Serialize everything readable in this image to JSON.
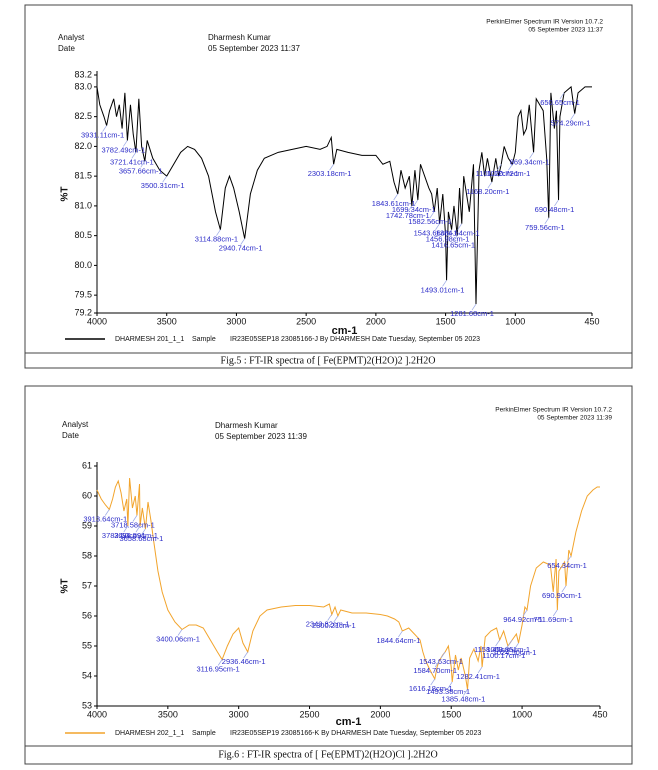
{
  "chart_data": [
    {
      "type": "line",
      "analyst_label": "Analyst",
      "date_label": "Date",
      "analyst": "Dharmesh Kumar",
      "date": "05 September 2023 11:37",
      "software": "PerkinElmer Spectrum IR Version 10.7.2",
      "software_date": "05 September 2023 11:37",
      "x_label": "cm-1",
      "y_label": "%T",
      "legend_sample": "Sample",
      "legend_info": "IR23E05SEP18 23085166-J  By DHARMESH  Date Tuesday, September 05 2023",
      "caption": "Fig.5 : FT-IR spectra of [ Fe(EPMT)2(H2O)2 ].2H2O",
      "xlim": [
        4000,
        450
      ],
      "ylim": [
        79.2,
        83.2
      ],
      "xticks": [
        4000,
        3500,
        3000,
        2500,
        2000,
        1500,
        1000,
        450
      ],
      "yticks": [
        79.2,
        79.5,
        {
          "value": 80,
          "label": "80.0"
        },
        80.5,
        {
          "value": 81,
          "label": "81.0"
        },
        81.5,
        {
          "value": 82,
          "label": "82.0"
        },
        82.5,
        {
          "value": 83,
          "label": "83.0"
        },
        83.2
      ],
      "x": [
        4000,
        3980,
        3950,
        3931,
        3910,
        3880,
        3860,
        3840,
        3820,
        3800,
        3782,
        3760,
        3740,
        3721,
        3700,
        3680,
        3657,
        3640,
        3600,
        3550,
        3500,
        3450,
        3400,
        3350,
        3300,
        3250,
        3200,
        3150,
        3115,
        3080,
        3050,
        3020,
        2980,
        2941,
        2900,
        2850,
        2800,
        2700,
        2600,
        2500,
        2400,
        2350,
        2320,
        2303,
        2280,
        2200,
        2100,
        2000,
        1950,
        1900,
        1870,
        1843,
        1820,
        1790,
        1760,
        1742,
        1720,
        1699,
        1680,
        1650,
        1620,
        1600,
        1582,
        1560,
        1543,
        1520,
        1500,
        1493,
        1480,
        1457,
        1440,
        1416,
        1400,
        1384,
        1370,
        1350,
        1330,
        1300,
        1282,
        1260,
        1240,
        1220,
        1200,
        1168,
        1140,
        1120,
        1101,
        1080,
        1050,
        1021,
        1000,
        980,
        960,
        940,
        920,
        900,
        869,
        850,
        800,
        775,
        760,
        745,
        720,
        705,
        690,
        680,
        650,
        600,
        574,
        550,
        500,
        450
      ],
      "series": [
        {
          "name": "DHARMESH 201_1_1",
          "color": "#000000",
          "values": [
            83.0,
            82.7,
            82.5,
            82.35,
            82.6,
            82.8,
            82.5,
            82.7,
            82.3,
            82.9,
            82.1,
            82.7,
            82.2,
            81.9,
            82.8,
            82.0,
            81.75,
            82.1,
            81.8,
            81.6,
            81.5,
            81.7,
            81.9,
            82.0,
            81.95,
            81.8,
            81.5,
            80.9,
            80.6,
            81.3,
            81.5,
            81.3,
            80.9,
            80.45,
            81.2,
            81.6,
            81.8,
            81.9,
            81.95,
            82.0,
            81.95,
            82.0,
            82.15,
            81.7,
            81.95,
            81.9,
            81.85,
            81.85,
            81.7,
            81.75,
            81.4,
            81.2,
            81.6,
            81.3,
            81.5,
            81.0,
            81.6,
            81.1,
            81.7,
            81.5,
            81.3,
            81.2,
            80.9,
            81.3,
            80.7,
            81.2,
            80.5,
            79.75,
            80.9,
            80.6,
            81.0,
            80.5,
            81.3,
            80.7,
            81.5,
            81.2,
            80.9,
            81.7,
            79.35,
            81.6,
            81.9,
            81.5,
            81.8,
            81.4,
            81.8,
            81.5,
            81.7,
            82.0,
            81.8,
            81.7,
            81.9,
            82.5,
            82.6,
            82.2,
            82.3,
            82.7,
            81.9,
            82.8,
            82.6,
            81.8,
            80.8,
            82.9,
            82.3,
            82.6,
            81.1,
            82.5,
            82.9,
            83.0,
            82.55,
            82.9,
            83.0,
            83.0
          ]
        }
      ],
      "peaks": [
        {
          "x": 3931.11,
          "y": 82.35,
          "label": "3931.11cm-1"
        },
        {
          "x": 3782.49,
          "y": 82.1,
          "label": "3782.49cm-1"
        },
        {
          "x": 3721.41,
          "y": 81.9,
          "label": "3721.41cm-1"
        },
        {
          "x": 3657.66,
          "y": 81.75,
          "label": "3657.66cm-1"
        },
        {
          "x": 3500.31,
          "y": 81.5,
          "label": "3500.31cm-1"
        },
        {
          "x": 3114.88,
          "y": 80.6,
          "label": "3114.88cm-1"
        },
        {
          "x": 2940.74,
          "y": 80.45,
          "label": "2940.74cm-1"
        },
        {
          "x": 2303.18,
          "y": 81.7,
          "label": "2303.18cm-1"
        },
        {
          "x": 1843.61,
          "y": 81.2,
          "label": "1843.61cm-1"
        },
        {
          "x": 1742.78,
          "y": 81.0,
          "label": "1742.78cm-1"
        },
        {
          "x": 1699.34,
          "y": 81.1,
          "label": "1699.34cm-1"
        },
        {
          "x": 1582.56,
          "y": 80.9,
          "label": "1582.56cm-1"
        },
        {
          "x": 1543.66,
          "y": 80.7,
          "label": "1543.66cm-1"
        },
        {
          "x": 1456.98,
          "y": 80.6,
          "label": "1456.98cm-1"
        },
        {
          "x": 1416.65,
          "y": 80.5,
          "label": "1416.65cm-1"
        },
        {
          "x": 1384.64,
          "y": 80.7,
          "label": "1384.64cm-1"
        },
        {
          "x": 1493.01,
          "y": 79.75,
          "label": "1493.01cm-1"
        },
        {
          "x": 1281.68,
          "y": 79.35,
          "label": "1281.68cm-1"
        },
        {
          "x": 1168.2,
          "y": 81.4,
          "label": "1168.20cm-1"
        },
        {
          "x": 1101.12,
          "y": 81.7,
          "label": "1101.12cm-1"
        },
        {
          "x": 1020.72,
          "y": 81.7,
          "label": "1020.72cm-1"
        },
        {
          "x": 869.34,
          "y": 81.9,
          "label": "869.34cm-1"
        },
        {
          "x": 759.56,
          "y": 80.8,
          "label": "759.56cm-1"
        },
        {
          "x": 690.48,
          "y": 81.1,
          "label": "690.48cm-1"
        },
        {
          "x": 650.65,
          "y": 82.9,
          "label": "650.65cm-1"
        },
        {
          "x": 574.29,
          "y": 82.55,
          "label": "574.29cm-1"
        }
      ]
    },
    {
      "type": "line",
      "analyst_label": "Analyst",
      "date_label": "Date",
      "analyst": "Dharmesh Kumar",
      "date": "05 September 2023 11:39",
      "software": "PerkinElmer Spectrum IR Version 10.7.2",
      "software_date": "05 September 2023 11:39",
      "x_label": "cm-1",
      "y_label": "%T",
      "legend_sample": "Sample",
      "legend_info": "IR23E05SEP19 23085166-K  By DHARMESH  Date Tuesday, September 05 2023",
      "caption": "Fig.6 : FT-IR spectra of [ Fe(EPMT)2(H2O)Cl ].2H2O",
      "xlim": [
        4000,
        450
      ],
      "ylim": [
        53,
        61
      ],
      "xticks": [
        4000,
        3500,
        3000,
        2500,
        2000,
        1500,
        1000,
        450
      ],
      "yticks": [
        53,
        54,
        55,
        56,
        57,
        58,
        59,
        60,
        61
      ],
      "x": [
        4000,
        3970,
        3940,
        3913,
        3890,
        3870,
        3850,
        3830,
        3810,
        3790,
        3782,
        3770,
        3750,
        3730,
        3718,
        3700,
        3696,
        3680,
        3658,
        3640,
        3620,
        3600,
        3570,
        3540,
        3500,
        3450,
        3400,
        3350,
        3300,
        3250,
        3200,
        3150,
        3117,
        3080,
        3040,
        3000,
        2970,
        2936,
        2900,
        2850,
        2800,
        2700,
        2600,
        2500,
        2400,
        2360,
        2343,
        2320,
        2300,
        2280,
        2200,
        2100,
        2000,
        1950,
        1900,
        1870,
        1845,
        1800,
        1760,
        1720,
        1700,
        1680,
        1650,
        1616,
        1600,
        1585,
        1560,
        1543,
        1520,
        1500,
        1493,
        1470,
        1450,
        1430,
        1400,
        1385,
        1370,
        1340,
        1310,
        1290,
        1282,
        1260,
        1220,
        1180,
        1158,
        1130,
        1100,
        1070,
        1040,
        1025,
        1000,
        980,
        965,
        940,
        900,
        850,
        800,
        780,
        760,
        751,
        740,
        700,
        690,
        670,
        654,
        620,
        580,
        540,
        500,
        470,
        450
      ],
      "series": [
        {
          "name": "DHARMESH 202_1_1",
          "color": "#f2a42c",
          "values": [
            60.2,
            59.9,
            59.7,
            59.55,
            59.9,
            60.3,
            60.5,
            60.1,
            59.5,
            59.9,
            59.0,
            60.6,
            59.6,
            60.0,
            59.35,
            60.4,
            59.0,
            59.6,
            58.9,
            59.8,
            59.2,
            58.5,
            57.5,
            56.8,
            56.2,
            55.8,
            55.55,
            55.7,
            55.7,
            55.6,
            55.2,
            54.8,
            54.55,
            55.0,
            55.4,
            55.6,
            55.1,
            54.8,
            55.5,
            56.0,
            56.2,
            56.3,
            56.35,
            56.35,
            56.3,
            56.4,
            56.05,
            56.3,
            56.0,
            56.2,
            56.1,
            56.1,
            56.05,
            56.0,
            55.9,
            55.8,
            55.5,
            55.6,
            55.4,
            55.2,
            54.8,
            54.5,
            54.2,
            53.9,
            54.3,
            54.5,
            54.7,
            54.8,
            55.0,
            54.3,
            53.8,
            54.7,
            54.2,
            54.6,
            54.0,
            53.55,
            54.6,
            54.9,
            54.5,
            55.0,
            54.3,
            55.3,
            55.5,
            55.6,
            55.2,
            55.5,
            55.0,
            55.2,
            55.4,
            55.1,
            55.7,
            56.3,
            56.2,
            57.0,
            57.6,
            57.8,
            57.7,
            56.8,
            57.9,
            56.2,
            57.5,
            57.8,
            57.0,
            58.2,
            58.0,
            58.8,
            59.5,
            60.0,
            60.2,
            60.3,
            60.3
          ]
        }
      ],
      "peaks": [
        {
          "x": 3913.64,
          "y": 59.55,
          "label": "3913.64cm-1"
        },
        {
          "x": 3718.58,
          "y": 59.35,
          "label": "3718.58cm-1"
        },
        {
          "x": 3696.59,
          "y": 59.0,
          "label": "3696.59cm-1"
        },
        {
          "x": 3658.68,
          "y": 58.9,
          "label": "3658.68cm-1"
        },
        {
          "x": 3782.5,
          "y": 59.0,
          "label": "3782.50cm-1"
        },
        {
          "x": 3400.06,
          "y": 55.55,
          "label": "3400.06cm-1"
        },
        {
          "x": 3116.95,
          "y": 54.55,
          "label": "3116.95cm-1"
        },
        {
          "x": 2936.46,
          "y": 54.8,
          "label": "2936.46cm-1"
        },
        {
          "x": 2343.82,
          "y": 56.05,
          "label": "2343.82cm-1"
        },
        {
          "x": 2300.21,
          "y": 56.0,
          "label": "2300.21cm-1"
        },
        {
          "x": 1844.64,
          "y": 55.5,
          "label": "1844.64cm-1"
        },
        {
          "x": 1543.63,
          "y": 54.8,
          "label": "1543.63cm-1"
        },
        {
          "x": 1584.7,
          "y": 54.5,
          "label": "1584.70cm-1"
        },
        {
          "x": 1493.38,
          "y": 53.8,
          "label": "1493.38cm-1"
        },
        {
          "x": 1616.18,
          "y": 53.9,
          "label": "1616.18cm-1"
        },
        {
          "x": 1385.48,
          "y": 53.55,
          "label": "1385.48cm-1"
        },
        {
          "x": 1282.41,
          "y": 54.3,
          "label": "1282.41cm-1"
        },
        {
          "x": 1158.45,
          "y": 55.2,
          "label": "1158.45cm-1"
        },
        {
          "x": 1069.85,
          "y": 55.2,
          "label": "1069.85cm-1"
        },
        {
          "x": 1100.17,
          "y": 55.0,
          "label": "1100.17cm-1"
        },
        {
          "x": 1024.5,
          "y": 55.1,
          "label": "1024.50cm-1"
        },
        {
          "x": 964.92,
          "y": 56.2,
          "label": "964.92cm-1"
        },
        {
          "x": 751.69,
          "y": 56.2,
          "label": "751.69cm-1"
        },
        {
          "x": 690.9,
          "y": 57.0,
          "label": "690.90cm-1"
        },
        {
          "x": 654.34,
          "y": 58.0,
          "label": "654.34cm-1"
        }
      ]
    }
  ]
}
